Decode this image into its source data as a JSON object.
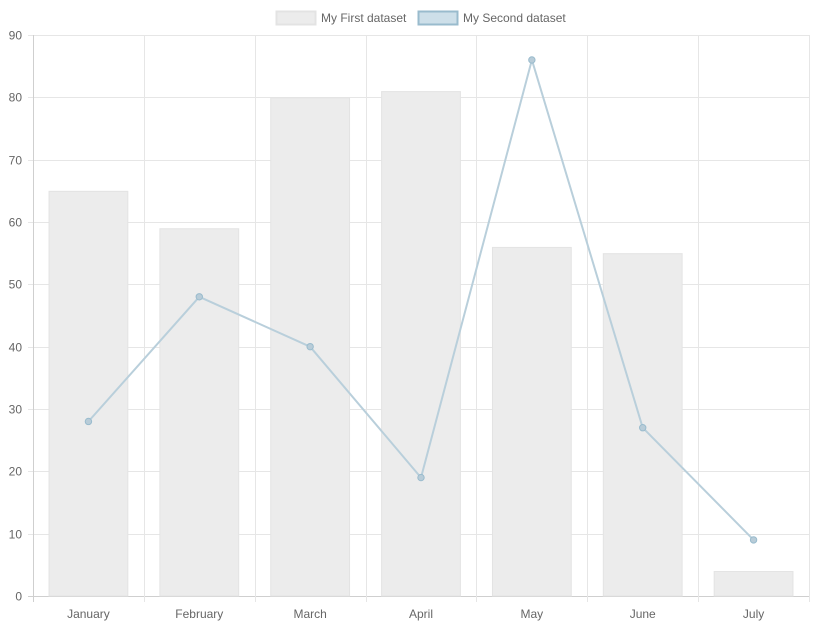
{
  "chart_data": {
    "type": "bar",
    "categories": [
      "January",
      "February",
      "March",
      "April",
      "May",
      "June",
      "July"
    ],
    "series": [
      {
        "name": "My First dataset",
        "type": "bar",
        "values": [
          65,
          59,
          80,
          81,
          56,
          55,
          4
        ],
        "color": "#ececec",
        "border_color": "#e3e3e3"
      },
      {
        "name": "My Second dataset",
        "type": "line",
        "values": [
          28,
          48,
          40,
          19,
          86,
          27,
          9
        ],
        "color": "#b9cfdb",
        "point_color": "#b8ccd8",
        "legend_fill": "#cddfe9",
        "legend_border": "#99bbcd"
      }
    ],
    "ylim": [
      0,
      90
    ],
    "yticks": [
      0,
      10,
      20,
      30,
      40,
      50,
      60,
      70,
      80,
      90
    ],
    "grid": true,
    "legend": "top"
  }
}
